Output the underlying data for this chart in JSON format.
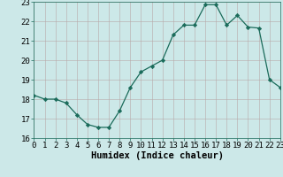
{
  "x": [
    0,
    1,
    2,
    3,
    4,
    5,
    6,
    7,
    8,
    9,
    10,
    11,
    12,
    13,
    14,
    15,
    16,
    17,
    18,
    19,
    20,
    21,
    22,
    23
  ],
  "y": [
    18.2,
    18.0,
    18.0,
    17.8,
    17.2,
    16.7,
    16.55,
    16.55,
    17.4,
    18.6,
    19.4,
    19.7,
    20.0,
    21.3,
    21.8,
    21.8,
    22.85,
    22.85,
    21.8,
    22.3,
    21.7,
    21.65,
    19.0,
    18.6
  ],
  "xlim": [
    0,
    23
  ],
  "ylim": [
    16,
    23
  ],
  "yticks": [
    16,
    17,
    18,
    19,
    20,
    21,
    22,
    23
  ],
  "xticks": [
    0,
    1,
    2,
    3,
    4,
    5,
    6,
    7,
    8,
    9,
    10,
    11,
    12,
    13,
    14,
    15,
    16,
    17,
    18,
    19,
    20,
    21,
    22,
    23
  ],
  "xlabel": "Humidex (Indice chaleur)",
  "line_color": "#1a6b5a",
  "marker": "D",
  "marker_size": 2.2,
  "bg_color": "#cce8e8",
  "grid_color": "#b8a8a8",
  "xlabel_fontsize": 7.5,
  "tick_fontsize": 6.5
}
